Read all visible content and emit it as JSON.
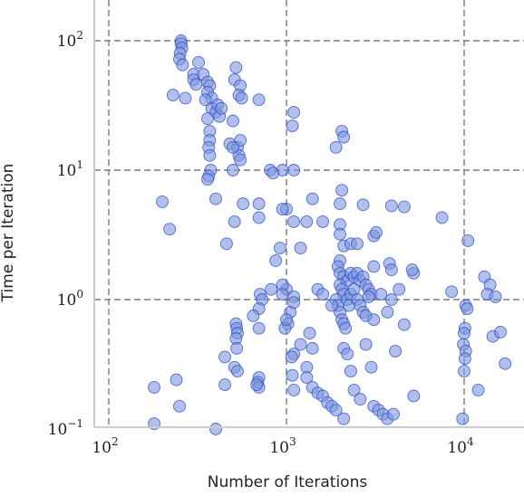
{
  "chart_data": {
    "type": "scatter",
    "title": "",
    "xlabel": "Number of Iterations",
    "ylabel": "Time per Iteration",
    "x_scale": "log",
    "y_scale": "log",
    "xlim": [
      78,
      20000
    ],
    "ylim": [
      0.1,
      200
    ],
    "grid": true,
    "x_ticks": [
      {
        "value": 100,
        "base": "10",
        "exp": "2"
      },
      {
        "value": 1000,
        "base": "10",
        "exp": "3"
      },
      {
        "value": 10000,
        "base": "10",
        "exp": "4"
      }
    ],
    "y_ticks": [
      {
        "value": 0.1,
        "base": "10",
        "exp": "−1"
      },
      {
        "value": 1,
        "base": "10",
        "exp": "0"
      },
      {
        "value": 10,
        "base": "10",
        "exp": "1"
      },
      {
        "value": 100,
        "base": "10",
        "exp": "2"
      }
    ],
    "colors": {
      "fill": "#7b96dc",
      "edge": "#2a44c8"
    },
    "points": [
      [
        255,
        100
      ],
      [
        255,
        95
      ],
      [
        258,
        88
      ],
      [
        252,
        80
      ],
      [
        250,
        72
      ],
      [
        260,
        65
      ],
      [
        300,
        55
      ],
      [
        320,
        68
      ],
      [
        340,
        55
      ],
      [
        360,
        48
      ],
      [
        370,
        45
      ],
      [
        360,
        40
      ],
      [
        380,
        36
      ],
      [
        380,
        30
      ],
      [
        400,
        28
      ],
      [
        420,
        26
      ],
      [
        410,
        32
      ],
      [
        430,
        30
      ],
      [
        360,
        25
      ],
      [
        370,
        20
      ],
      [
        370,
        17
      ],
      [
        365,
        15
      ],
      [
        370,
        13
      ],
      [
        375,
        10
      ],
      [
        365,
        9
      ],
      [
        360,
        8.5
      ],
      [
        300,
        50
      ],
      [
        310,
        46
      ],
      [
        230,
        38
      ],
      [
        270,
        36
      ],
      [
        350,
        35
      ],
      [
        520,
        62
      ],
      [
        510,
        50
      ],
      [
        550,
        45
      ],
      [
        540,
        38
      ],
      [
        560,
        36
      ],
      [
        700,
        35
      ],
      [
        500,
        24
      ],
      [
        480,
        16
      ],
      [
        530,
        15
      ],
      [
        550,
        17
      ],
      [
        540,
        13
      ],
      [
        550,
        12
      ],
      [
        500,
        15
      ],
      [
        500,
        10
      ],
      [
        1100,
        28
      ],
      [
        1080,
        22
      ],
      [
        1100,
        10
      ],
      [
        950,
        10
      ],
      [
        810,
        10
      ],
      [
        840,
        9.5
      ],
      [
        1000,
        5
      ],
      [
        950,
        5
      ],
      [
        2050,
        20
      ],
      [
        2100,
        18
      ],
      [
        1900,
        15
      ],
      [
        2050,
        7
      ],
      [
        2000,
        5.5
      ],
      [
        2700,
        5.4
      ],
      [
        3900,
        5.3
      ],
      [
        4600,
        5.2
      ],
      [
        7500,
        4.3
      ],
      [
        1400,
        6
      ],
      [
        1600,
        4
      ],
      [
        1300,
        4
      ],
      [
        1100,
        4
      ],
      [
        1200,
        2.5
      ],
      [
        920,
        2.5
      ],
      [
        870,
        2
      ],
      [
        700,
        5.5
      ],
      [
        700,
        4.3
      ],
      [
        570,
        5.5
      ],
      [
        510,
        4
      ],
      [
        400,
        6
      ],
      [
        200,
        5.7
      ],
      [
        220,
        3.5
      ],
      [
        460,
        2.7
      ],
      [
        2000,
        3.8
      ],
      [
        2000,
        3.2
      ],
      [
        2100,
        2.6
      ],
      [
        2300,
        2.7
      ],
      [
        2500,
        2.7
      ],
      [
        3100,
        3.1
      ],
      [
        3200,
        3.3
      ],
      [
        3800,
        1.9
      ],
      [
        3900,
        1.7
      ],
      [
        3100,
        1.8
      ],
      [
        2000,
        2
      ],
      [
        1950,
        1.8
      ],
      [
        2000,
        1.6
      ],
      [
        2100,
        1.5
      ],
      [
        2200,
        1.4
      ],
      [
        2300,
        1.6
      ],
      [
        2400,
        1.5
      ],
      [
        2500,
        1.6
      ],
      [
        2600,
        1.4
      ],
      [
        2700,
        1.5
      ],
      [
        2800,
        1.3
      ],
      [
        2900,
        1.2
      ],
      [
        3000,
        1.1
      ],
      [
        2000,
        1.3
      ],
      [
        2050,
        1.2
      ],
      [
        2100,
        1.1
      ],
      [
        2200,
        1
      ],
      [
        2250,
        0.9
      ],
      [
        2300,
        1.1
      ],
      [
        2400,
        1.2
      ],
      [
        2500,
        1
      ],
      [
        1900,
        1
      ],
      [
        1950,
        0.9
      ],
      [
        2000,
        0.8
      ],
      [
        2050,
        0.7
      ],
      [
        2100,
        0.65
      ],
      [
        2150,
        0.6
      ],
      [
        2600,
        0.9
      ],
      [
        2700,
        0.8
      ],
      [
        2800,
        0.75
      ],
      [
        2900,
        1.05
      ],
      [
        3100,
        0.7
      ],
      [
        3400,
        1.1
      ],
      [
        3700,
        0.8
      ],
      [
        3900,
        1.0
      ],
      [
        4300,
        1.2
      ],
      [
        5200,
        1.6
      ],
      [
        5100,
        1.7
      ],
      [
        8500,
        1.15
      ],
      [
        1500,
        1.2
      ],
      [
        1600,
        1.1
      ],
      [
        1800,
        0.9
      ],
      [
        1350,
        0.55
      ],
      [
        1400,
        0.42
      ],
      [
        1200,
        0.45
      ],
      [
        1100,
        0.38
      ],
      [
        1070,
        0.36
      ],
      [
        1000,
        1.2
      ],
      [
        950,
        1.3
      ],
      [
        1050,
        0.8
      ],
      [
        1020,
        0.65
      ],
      [
        980,
        0.6
      ],
      [
        950,
        1.1
      ],
      [
        820,
        1.2
      ],
      [
        710,
        1.1
      ],
      [
        730,
        1.0
      ],
      [
        700,
        0.85
      ],
      [
        650,
        0.75
      ],
      [
        700,
        0.6
      ],
      [
        520,
        0.65
      ],
      [
        525,
        0.6
      ],
      [
        530,
        0.55
      ],
      [
        520,
        0.5
      ],
      [
        525,
        0.42
      ],
      [
        450,
        0.36
      ],
      [
        510,
        0.3
      ],
      [
        530,
        0.28
      ],
      [
        700,
        0.25
      ],
      [
        690,
        0.23
      ],
      [
        700,
        0.21
      ],
      [
        680,
        0.22
      ],
      [
        450,
        0.22
      ],
      [
        400,
        0.1
      ],
      [
        240,
        0.24
      ],
      [
        250,
        0.15
      ],
      [
        180,
        0.21
      ],
      [
        180,
        0.11
      ],
      [
        1080,
        0.26
      ],
      [
        1100,
        0.2
      ],
      [
        1300,
        0.3
      ],
      [
        1300,
        0.25
      ],
      [
        1400,
        0.21
      ],
      [
        1500,
        0.19
      ],
      [
        1600,
        0.18
      ],
      [
        1700,
        0.16
      ],
      [
        1800,
        0.15
      ],
      [
        1900,
        0.14
      ],
      [
        2100,
        0.42
      ],
      [
        2200,
        0.38
      ],
      [
        2300,
        0.28
      ],
      [
        2100,
        0.12
      ],
      [
        2400,
        0.2
      ],
      [
        2600,
        0.17
      ],
      [
        2800,
        0.45
      ],
      [
        3000,
        0.3
      ],
      [
        3100,
        0.15
      ],
      [
        3300,
        0.14
      ],
      [
        3500,
        0.13
      ],
      [
        3700,
        0.12
      ],
      [
        4000,
        0.13
      ],
      [
        4600,
        0.64
      ],
      [
        5200,
        0.18
      ],
      [
        4100,
        0.4
      ],
      [
        9800,
        0.12
      ],
      [
        10500,
        2.85
      ],
      [
        10200,
        0.9
      ],
      [
        10400,
        0.85
      ],
      [
        10100,
        0.6
      ],
      [
        10000,
        0.55
      ],
      [
        9900,
        0.45
      ],
      [
        10200,
        0.4
      ],
      [
        10100,
        0.35
      ],
      [
        10000,
        0.28
      ],
      [
        12000,
        0.2
      ],
      [
        13000,
        1.5
      ],
      [
        14000,
        1.3
      ],
      [
        13500,
        1.1
      ],
      [
        15000,
        1.05
      ],
      [
        14500,
        0.52
      ],
      [
        16000,
        0.56
      ],
      [
        17000,
        0.32
      ],
      [
        1100,
        1.05
      ],
      [
        1100,
        0.95
      ],
      [
        1000,
        0.7
      ]
    ]
  }
}
